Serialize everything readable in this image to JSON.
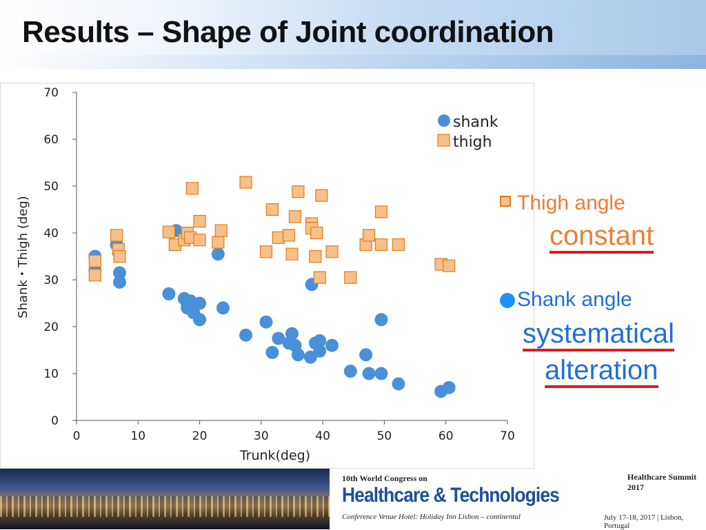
{
  "slide": {
    "title": "Results – Shape of Joint coordination"
  },
  "colors": {
    "shank": "#4a90d9",
    "thigh_fill": "#f7c08a",
    "thigh_edge": "#e07b1a",
    "thigh_text": "#ed7d31",
    "shank_text": "#1f6fd6",
    "underline": "#e01a1a"
  },
  "chart_data": {
    "type": "scatter",
    "title": "",
    "xlabel": "Trunk(deg)",
    "ylabel": "Shank・Thigh (deg)",
    "xlim": [
      0,
      70
    ],
    "ylim": [
      0,
      70
    ],
    "xticks": [
      0,
      10,
      20,
      30,
      40,
      50,
      60,
      70
    ],
    "yticks": [
      0,
      10,
      20,
      30,
      40,
      50,
      60,
      70
    ],
    "grid": false,
    "legend_position": "top-right",
    "series": [
      {
        "name": "shank",
        "marker": "circle",
        "points": [
          [
            3.0,
            35.0
          ],
          [
            3.0,
            32.0
          ],
          [
            6.5,
            37.5
          ],
          [
            7.0,
            29.5
          ],
          [
            7.0,
            31.5
          ],
          [
            15.0,
            27.0
          ],
          [
            16.2,
            40.5
          ],
          [
            17.5,
            26.0
          ],
          [
            18.0,
            25.0
          ],
          [
            18.0,
            24.0
          ],
          [
            18.5,
            25.5
          ],
          [
            19.0,
            23.0
          ],
          [
            20.0,
            21.5
          ],
          [
            20.0,
            25.0
          ],
          [
            23.0,
            35.5
          ],
          [
            23.8,
            24.0
          ],
          [
            27.5,
            18.2
          ],
          [
            30.8,
            21.0
          ],
          [
            31.8,
            14.5
          ],
          [
            32.8,
            17.5
          ],
          [
            34.5,
            16.5
          ],
          [
            35.0,
            18.5
          ],
          [
            35.5,
            16.0
          ],
          [
            36.0,
            14.0
          ],
          [
            38.0,
            13.5
          ],
          [
            38.2,
            29.0
          ],
          [
            38.8,
            16.5
          ],
          [
            39.5,
            17.0
          ],
          [
            39.5,
            14.8
          ],
          [
            41.5,
            16.0
          ],
          [
            44.5,
            10.5
          ],
          [
            47.0,
            14.0
          ],
          [
            47.5,
            10.0
          ],
          [
            49.5,
            10.0
          ],
          [
            49.5,
            21.5
          ],
          [
            52.3,
            7.8
          ],
          [
            59.2,
            6.2
          ],
          [
            60.5,
            7.0
          ]
        ]
      },
      {
        "name": "thigh",
        "marker": "square",
        "points": [
          [
            3.0,
            34.0
          ],
          [
            3.0,
            31.0
          ],
          [
            6.5,
            39.5
          ],
          [
            6.8,
            36.5
          ],
          [
            7.0,
            35.0
          ],
          [
            15.0,
            40.2
          ],
          [
            16.0,
            37.5
          ],
          [
            17.5,
            38.5
          ],
          [
            18.0,
            40.0
          ],
          [
            18.5,
            39.0
          ],
          [
            18.8,
            49.5
          ],
          [
            20.0,
            42.5
          ],
          [
            20.0,
            38.5
          ],
          [
            23.0,
            38.0
          ],
          [
            23.5,
            40.5
          ],
          [
            27.5,
            50.8
          ],
          [
            30.8,
            36.0
          ],
          [
            31.8,
            45.0
          ],
          [
            32.8,
            39.0
          ],
          [
            34.5,
            39.5
          ],
          [
            35.0,
            35.5
          ],
          [
            35.5,
            43.5
          ],
          [
            36.0,
            48.8
          ],
          [
            38.2,
            42.0
          ],
          [
            38.2,
            41.0
          ],
          [
            38.8,
            35.0
          ],
          [
            39.0,
            40.0
          ],
          [
            39.5,
            30.5
          ],
          [
            39.8,
            48.0
          ],
          [
            41.5,
            36.0
          ],
          [
            44.5,
            30.5
          ],
          [
            47.0,
            37.5
          ],
          [
            47.5,
            39.5
          ],
          [
            49.5,
            37.5
          ],
          [
            49.5,
            44.5
          ],
          [
            52.3,
            37.5
          ],
          [
            59.2,
            33.3
          ],
          [
            60.5,
            33.0
          ]
        ]
      }
    ]
  },
  "annotations": {
    "thigh_label": "Thigh angle",
    "thigh_desc": "constant",
    "shank_label": "Shank angle",
    "shank_desc_line1": "systematical",
    "shank_desc_line2": "alteration"
  },
  "footer": {
    "congress": "10th World Congress on",
    "brand": "Healthcare & Technologies",
    "venue": "Conference Venue Hotel: Holiday Inn Lisbon – continental",
    "summit": "Healthcare Summit 2017",
    "dates": "July 17-18, 2017 | Lisbon, Portugal"
  }
}
